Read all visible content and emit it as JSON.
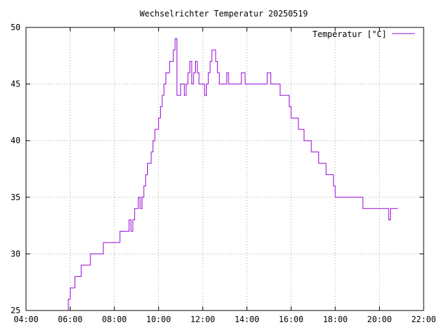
{
  "chart_data": {
    "type": "line",
    "title": "Wechselrichter Temperatur 20250519",
    "xlabel": "",
    "ylabel": "",
    "xlim": [
      "04:00",
      "22:00"
    ],
    "ylim": [
      25,
      50
    ],
    "grid": true,
    "legend_position": "top-right",
    "x_tick_labels": [
      "04:00",
      "06:00",
      "08:00",
      "10:00",
      "12:00",
      "14:00",
      "16:00",
      "18:00",
      "20:00",
      "22:00"
    ],
    "y_tick_labels": [
      "25",
      "30",
      "35",
      "40",
      "45",
      "50"
    ],
    "series": [
      {
        "name": "Temperatur [°C]",
        "color": "#9400d3",
        "step": true,
        "x": [
          "05:50",
          "05:55",
          "06:00",
          "06:13",
          "06:30",
          "06:55",
          "07:30",
          "08:15",
          "08:40",
          "08:45",
          "08:50",
          "08:55",
          "09:05",
          "09:10",
          "09:15",
          "09:20",
          "09:25",
          "09:30",
          "09:40",
          "09:45",
          "09:50",
          "10:00",
          "10:05",
          "10:10",
          "10:15",
          "10:20",
          "10:25",
          "10:30",
          "10:35",
          "10:40",
          "10:45",
          "10:50",
          "11:00",
          "11:10",
          "11:15",
          "11:20",
          "11:25",
          "11:30",
          "11:35",
          "11:40",
          "11:45",
          "11:50",
          "11:55",
          "12:00",
          "12:05",
          "12:10",
          "12:15",
          "12:20",
          "12:25",
          "12:35",
          "12:40",
          "12:45",
          "12:50",
          "12:55",
          "13:00",
          "13:05",
          "13:10",
          "13:15",
          "13:20",
          "13:25",
          "13:30",
          "13:40",
          "13:45",
          "13:55",
          "14:00",
          "14:45",
          "14:55",
          "15:00",
          "15:05",
          "15:30",
          "15:55",
          "16:00",
          "16:20",
          "16:35",
          "16:55",
          "17:15",
          "17:35",
          "17:55",
          "18:00",
          "18:35",
          "19:15",
          "19:20",
          "20:25",
          "20:30",
          "20:50",
          "20:50"
        ],
        "values": [
          25,
          26,
          27,
          28,
          29,
          30,
          31,
          32,
          33,
          32,
          33,
          34,
          35,
          34,
          35,
          36,
          37,
          38,
          39,
          40,
          41,
          42,
          43,
          44,
          45,
          46,
          46,
          47,
          47,
          48,
          49,
          44,
          45,
          44,
          45,
          46,
          47,
          45,
          46,
          47,
          46,
          45,
          45,
          45,
          44,
          45,
          46,
          47,
          48,
          47,
          46,
          45,
          45,
          45,
          45,
          46,
          45,
          45,
          45,
          45,
          45,
          45,
          46,
          45,
          45,
          45,
          46,
          46,
          45,
          44,
          43,
          42,
          41,
          40,
          39,
          38,
          37,
          36,
          35,
          35,
          34,
          34,
          33,
          34,
          34,
          34
        ]
      }
    ]
  }
}
